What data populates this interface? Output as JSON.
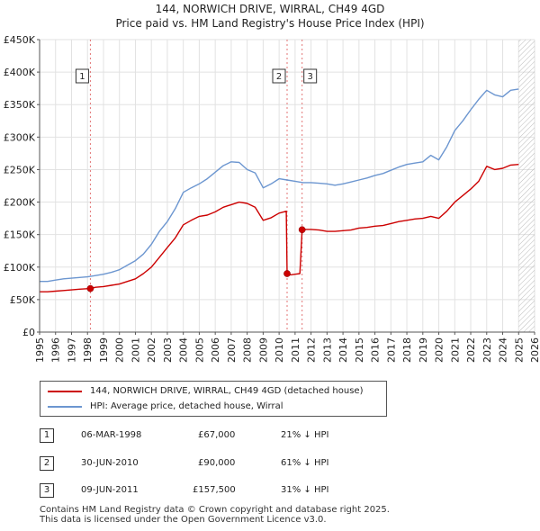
{
  "chart_data": {
    "type": "line",
    "title": "144, NORWICH DRIVE, WIRRAL, CH49 4GD",
    "subtitle": "Price paid vs. HM Land Registry's House Price Index (HPI)",
    "xlabel": "",
    "ylabel": "",
    "xlim": [
      1995,
      2026
    ],
    "ylim": [
      0,
      450000
    ],
    "yticks": [
      {
        "value": 0,
        "label": "£0"
      },
      {
        "value": 50000,
        "label": "£50K"
      },
      {
        "value": 100000,
        "label": "£100K"
      },
      {
        "value": 150000,
        "label": "£150K"
      },
      {
        "value": 200000,
        "label": "£200K"
      },
      {
        "value": 250000,
        "label": "£250K"
      },
      {
        "value": 300000,
        "label": "£300K"
      },
      {
        "value": 350000,
        "label": "£350K"
      },
      {
        "value": 400000,
        "label": "£400K"
      },
      {
        "value": 450000,
        "label": "£450K"
      }
    ],
    "xticks": [
      "1995",
      "1996",
      "1997",
      "1998",
      "1999",
      "2000",
      "2001",
      "2002",
      "2003",
      "2004",
      "2005",
      "2006",
      "2007",
      "2008",
      "2009",
      "2010",
      "2011",
      "2012",
      "2013",
      "2014",
      "2015",
      "2016",
      "2017",
      "2018",
      "2019",
      "2020",
      "2021",
      "2022",
      "2023",
      "2024",
      "2025",
      "2026"
    ],
    "grid": true,
    "hatched_region_start": 2025.0,
    "series": [
      {
        "name": "144, NORWICH DRIVE, WIRRAL, CH49 4GD (detached house)",
        "color": "#cc0000",
        "x": [
          1995.0,
          1995.5,
          1996.0,
          1996.5,
          1997.0,
          1997.5,
          1998.18,
          1998.5,
          1999.0,
          1999.5,
          2000.0,
          2000.5,
          2001.0,
          2001.5,
          2002.0,
          2002.5,
          2003.0,
          2003.5,
          2004.0,
          2004.5,
          2005.0,
          2005.5,
          2006.0,
          2006.5,
          2007.0,
          2007.5,
          2008.0,
          2008.5,
          2009.0,
          2009.5,
          2010.0,
          2010.45,
          2010.5,
          2010.7,
          2011.0,
          2011.3,
          2011.44,
          2011.6,
          2012.0,
          2012.5,
          2013.0,
          2013.5,
          2014.0,
          2014.5,
          2015.0,
          2015.5,
          2016.0,
          2016.5,
          2017.0,
          2017.5,
          2018.0,
          2018.5,
          2019.0,
          2019.5,
          2020.0,
          2020.5,
          2021.0,
          2021.5,
          2022.0,
          2022.5,
          2023.0,
          2023.5,
          2024.0,
          2024.5,
          2025.0
        ],
        "y": [
          62000,
          62000,
          63000,
          64000,
          65000,
          66000,
          67000,
          69000,
          70000,
          72000,
          74000,
          78000,
          82000,
          90000,
          100000,
          115000,
          130000,
          145000,
          165000,
          172000,
          178000,
          180000,
          185000,
          192000,
          196000,
          200000,
          198000,
          192000,
          172000,
          176000,
          183000,
          186000,
          90000,
          88000,
          89000,
          90000,
          157500,
          158000,
          158000,
          157000,
          155000,
          155000,
          156000,
          157000,
          160000,
          161000,
          163000,
          164000,
          167000,
          170000,
          172000,
          174000,
          175000,
          178000,
          175000,
          186000,
          200000,
          210000,
          220000,
          232000,
          255000,
          250000,
          252000,
          257000,
          258000
        ]
      },
      {
        "name": "HPI: Average price, detached house, Wirral",
        "color": "#6c96d0",
        "x": [
          1995.0,
          1995.5,
          1996.0,
          1996.5,
          1997.0,
          1997.5,
          1998.0,
          1998.5,
          1999.0,
          1999.5,
          2000.0,
          2000.5,
          2001.0,
          2001.5,
          2002.0,
          2002.5,
          2003.0,
          2003.5,
          2004.0,
          2004.5,
          2005.0,
          2005.5,
          2006.0,
          2006.5,
          2007.0,
          2007.5,
          2008.0,
          2008.5,
          2009.0,
          2009.5,
          2010.0,
          2010.5,
          2011.0,
          2011.5,
          2012.0,
          2012.5,
          2013.0,
          2013.5,
          2014.0,
          2014.5,
          2015.0,
          2015.5,
          2016.0,
          2016.5,
          2017.0,
          2017.5,
          2018.0,
          2018.5,
          2019.0,
          2019.5,
          2020.0,
          2020.5,
          2021.0,
          2021.5,
          2022.0,
          2022.5,
          2023.0,
          2023.5,
          2024.0,
          2024.5,
          2025.0
        ],
        "y": [
          78000,
          78000,
          80000,
          82000,
          83000,
          84000,
          85000,
          87000,
          89000,
          92000,
          96000,
          103000,
          110000,
          120000,
          135000,
          155000,
          170000,
          190000,
          215000,
          222000,
          228000,
          236000,
          246000,
          256000,
          262000,
          261000,
          250000,
          245000,
          222000,
          228000,
          236000,
          234000,
          232000,
          230000,
          230000,
          229000,
          228000,
          226000,
          228000,
          231000,
          234000,
          237000,
          241000,
          244000,
          249000,
          254000,
          258000,
          260000,
          262000,
          272000,
          265000,
          285000,
          310000,
          325000,
          342000,
          358000,
          372000,
          365000,
          362000,
          372000,
          374000
        ]
      }
    ],
    "markers": [
      {
        "label": "1",
        "x": 1998.18,
        "y": 67000
      },
      {
        "label": "2",
        "x": 2010.5,
        "y": 90000
      },
      {
        "label": "3",
        "x": 2011.44,
        "y": 157500
      }
    ]
  },
  "legend": {
    "property_label": "144, NORWICH DRIVE, WIRRAL, CH49 4GD (detached house)",
    "hpi_label": "HPI: Average price, detached house, Wirral"
  },
  "sales": [
    {
      "num": "1",
      "date": "06-MAR-1998",
      "price": "£67,000",
      "hpi": "21% ↓ HPI"
    },
    {
      "num": "2",
      "date": "30-JUN-2010",
      "price": "£90,000",
      "hpi": "61% ↓ HPI"
    },
    {
      "num": "3",
      "date": "09-JUN-2011",
      "price": "£157,500",
      "hpi": "31% ↓ HPI"
    }
  ],
  "footer": {
    "line1": "Contains HM Land Registry data © Crown copyright and database right 2025.",
    "line2": "This data is licensed under the Open Government Licence v3.0."
  }
}
